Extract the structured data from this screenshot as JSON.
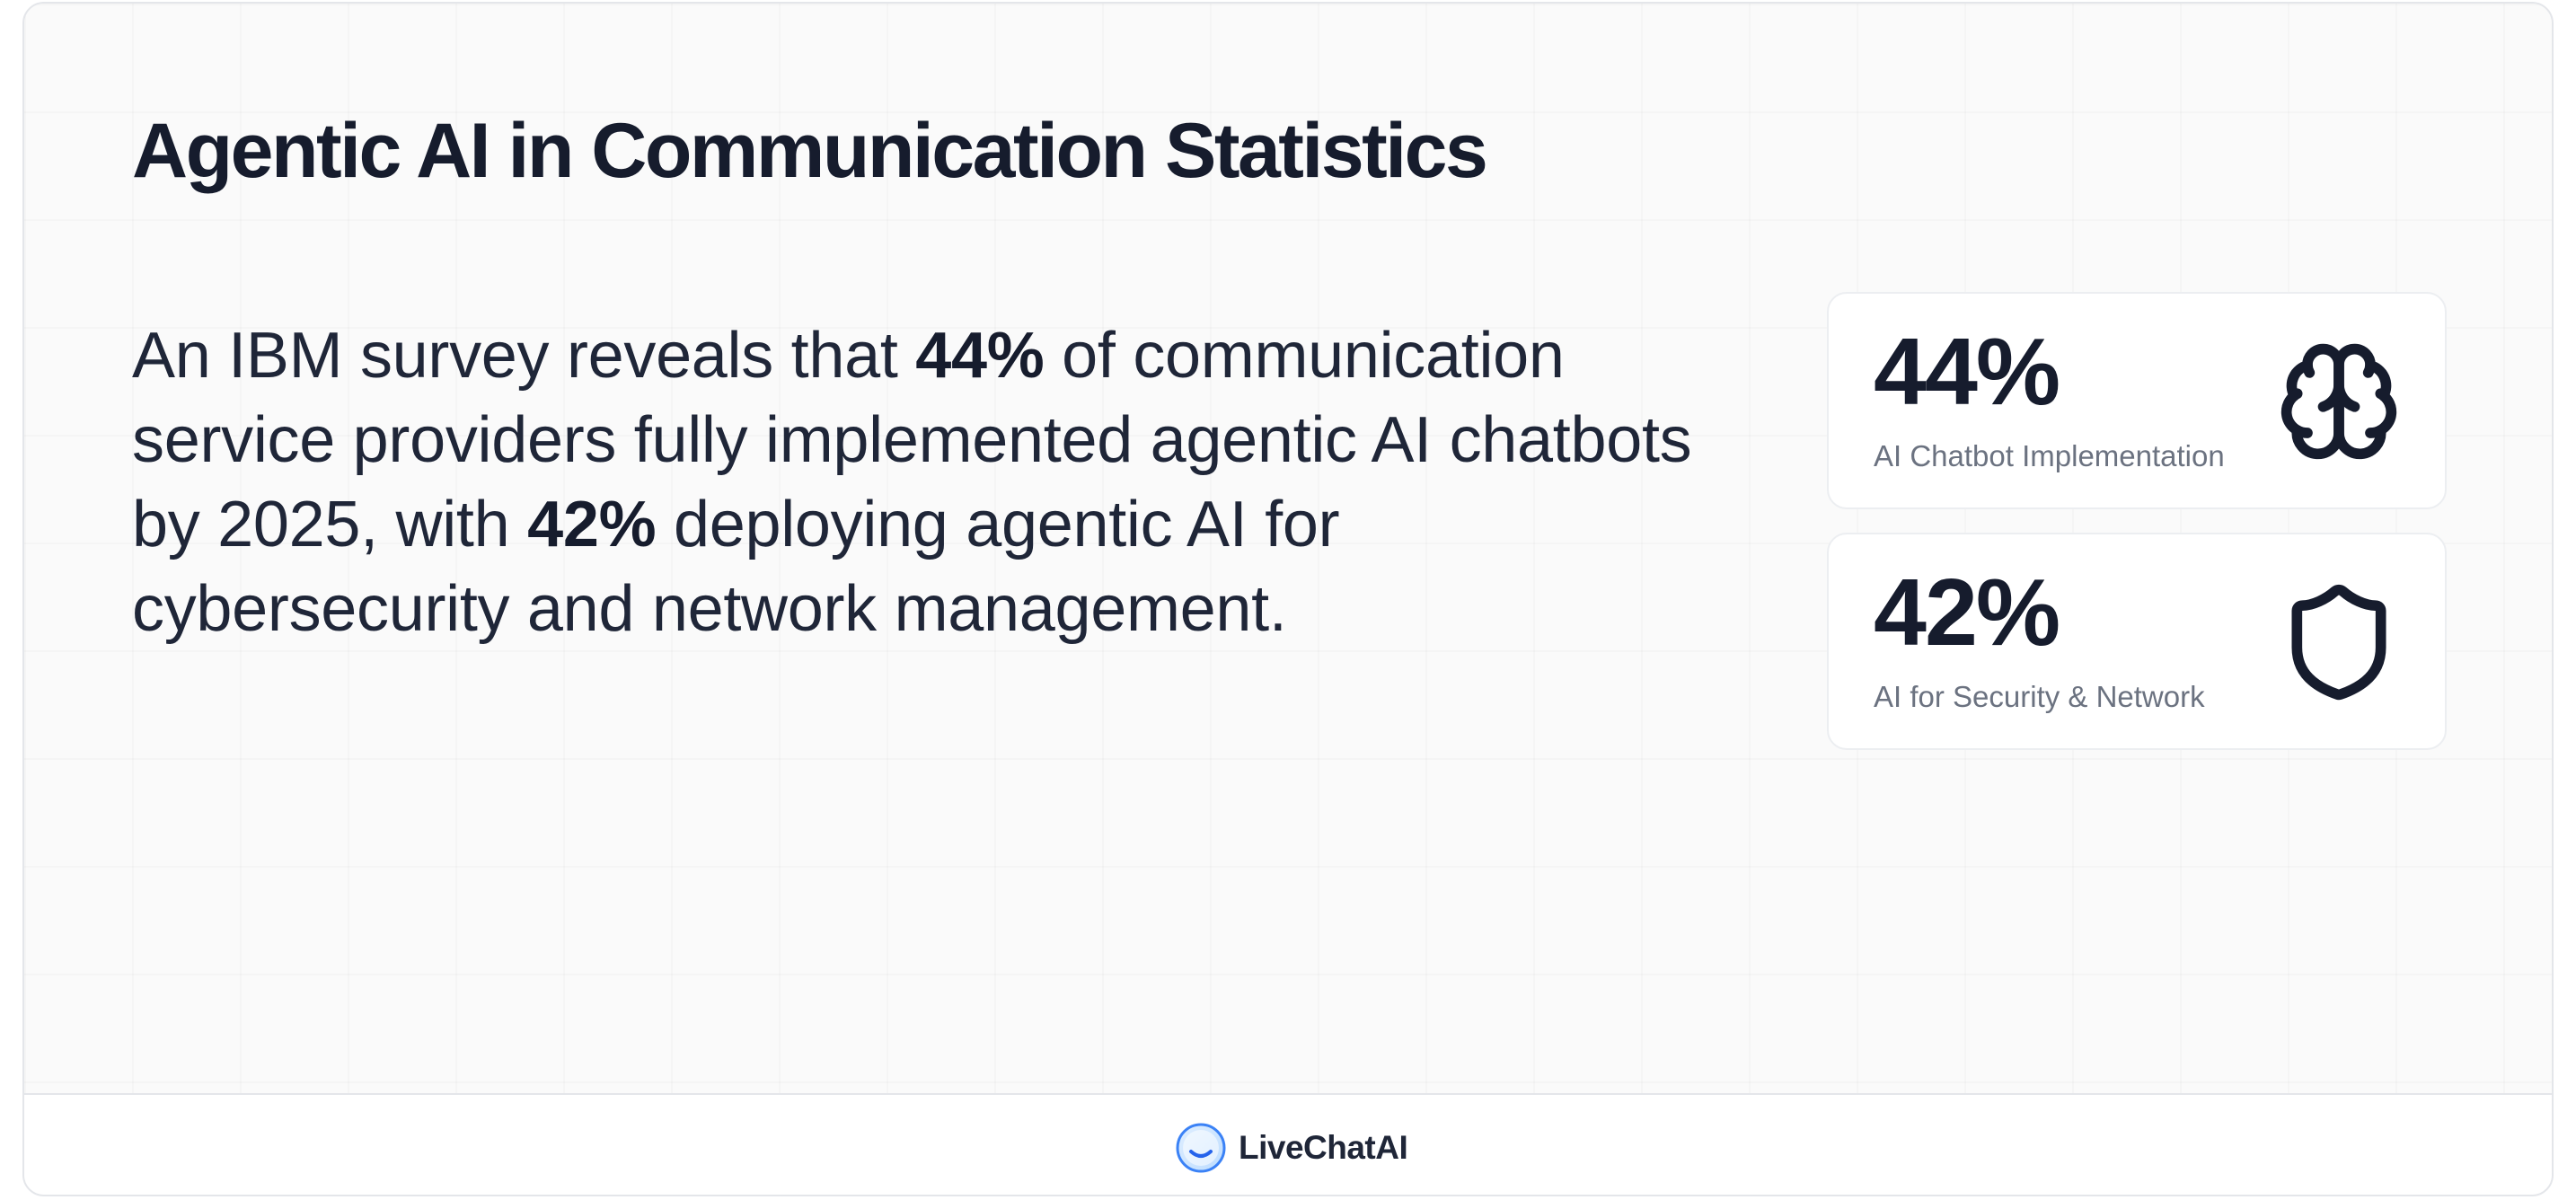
{
  "title": "Agentic AI in Communication Statistics",
  "description": {
    "part1": "An IBM survey reveals that ",
    "highlight1": "44%",
    "part2": " of communication service providers fully implemented agentic AI chatbots by 2025, with ",
    "highlight2": "42%",
    "part3": " deploying agentic AI for cybersecurity and network management."
  },
  "stats": [
    {
      "value": "44%",
      "label": "AI Chatbot Implementation",
      "icon": "brain-icon"
    },
    {
      "value": "42%",
      "label": "AI for Security & Network",
      "icon": "shield-icon"
    }
  ],
  "footer": {
    "brand": "LiveChatAI",
    "logo_icon": "smile-logo-icon"
  },
  "colors": {
    "text_dark": "#161c2d",
    "text_body": "#1f2638",
    "label_gray": "#6b7280",
    "background": "#fafafa",
    "card_bg": "#ffffff",
    "logo_blue": "#3b82f6"
  }
}
